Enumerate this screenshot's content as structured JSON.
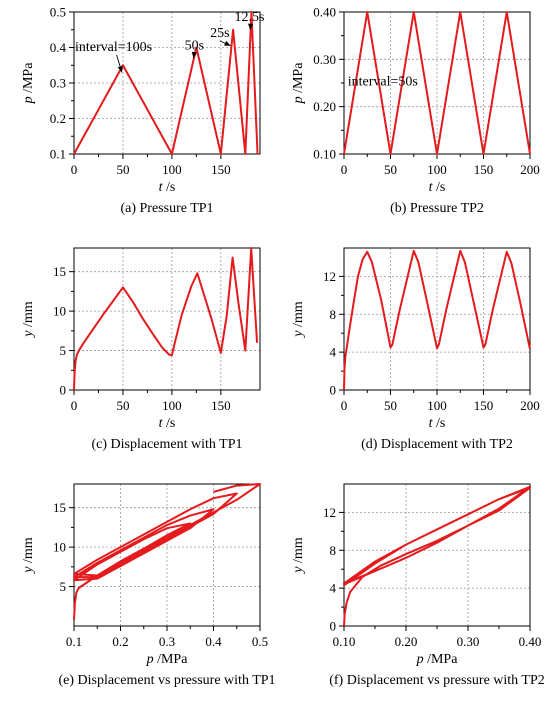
{
  "chart_data": [
    {
      "id": "a",
      "type": "line",
      "caption": "(a) Pressure TP1",
      "xlabel": "t",
      "xunit": " /s",
      "ylabel": "p",
      "yunit": " /MPa",
      "xlim": [
        0,
        190
      ],
      "ylim": [
        0.1,
        0.5
      ],
      "xticks": [
        0,
        50,
        100,
        150
      ],
      "yticks": [
        0.1,
        0.2,
        0.3,
        0.4,
        0.5
      ],
      "ytick_decimals": 1,
      "grid": true,
      "series": [
        {
          "x": [
            0,
            50,
            100,
            125,
            150,
            162.5,
            175,
            181.25,
            187.5
          ],
          "y": [
            0.1,
            0.35,
            0.1,
            0.4,
            0.1,
            0.45,
            0.1,
            0.5,
            0.1
          ]
        }
      ],
      "annotations": [
        {
          "text": "interval=100s",
          "x": 1,
          "y": 0.39,
          "ax": 49,
          "ay": 0.33
        },
        {
          "text": "50s",
          "x": 113,
          "y": 0.395,
          "ax": 122,
          "ay": 0.37
        },
        {
          "text": "25s",
          "x": 139,
          "y": 0.43,
          "ax": 160,
          "ay": 0.405
        },
        {
          "text": "12.5s",
          "x": 164,
          "y": 0.475,
          "ax": 180,
          "ay": 0.45
        }
      ]
    },
    {
      "id": "b",
      "type": "line",
      "caption": "(b) Pressure TP2",
      "xlabel": "t",
      "xunit": " /s",
      "ylabel": "p",
      "yunit": " /MPa",
      "xlim": [
        0,
        200
      ],
      "ylim": [
        0.1,
        0.4
      ],
      "xticks": [
        0,
        50,
        100,
        150,
        200
      ],
      "yticks": [
        0.1,
        0.2,
        0.3,
        0.4
      ],
      "ytick_decimals": 2,
      "grid": true,
      "series": [
        {
          "x": [
            0,
            25,
            50,
            75,
            100,
            125,
            150,
            175,
            200
          ],
          "y": [
            0.1,
            0.4,
            0.1,
            0.4,
            0.1,
            0.4,
            0.1,
            0.4,
            0.1
          ]
        }
      ],
      "annotations": [
        {
          "text": "interval=50s",
          "x": 4,
          "y": 0.245
        }
      ]
    },
    {
      "id": "c",
      "type": "line",
      "caption": "(c) Displacement with TP1",
      "xlabel": "t",
      "xunit": " /s",
      "ylabel": "y",
      "yunit": " /mm",
      "xlim": [
        0,
        190
      ],
      "ylim": [
        0,
        18
      ],
      "xticks": [
        0,
        50,
        100,
        150
      ],
      "yticks": [
        0,
        5,
        10,
        15
      ],
      "ytick_decimals": 0,
      "grid": true,
      "series": [
        {
          "x": [
            0,
            0.5,
            1.5,
            3,
            5,
            10,
            20,
            30,
            40,
            50,
            60,
            70,
            80,
            90,
            97,
            100,
            103,
            110,
            120,
            126,
            130,
            140,
            150,
            156,
            162,
            168,
            175,
            181,
            187
          ],
          "y": [
            0,
            2.0,
            3.6,
            4.5,
            5.0,
            6.0,
            7.8,
            9.6,
            11.3,
            13.0,
            11.2,
            9.1,
            7.2,
            5.4,
            4.5,
            4.4,
            6.0,
            9.5,
            13.2,
            14.8,
            13.2,
            9.2,
            4.7,
            9.4,
            16.8,
            11.0,
            5.0,
            18.0,
            6.0
          ]
        }
      ]
    },
    {
      "id": "d",
      "type": "line",
      "caption": "(d) Displacement with TP2",
      "xlabel": "t",
      "xunit": " /s",
      "ylabel": "y",
      "yunit": " /mm",
      "xlim": [
        0,
        200
      ],
      "ylim": [
        0,
        15
      ],
      "xticks": [
        0,
        50,
        100,
        150,
        200
      ],
      "yticks": [
        0,
        4,
        8,
        12
      ],
      "ytick_decimals": 0,
      "grid": true,
      "series": [
        {
          "x": [
            0,
            0.5,
            1.5,
            3,
            6,
            10,
            15,
            20,
            25,
            30,
            40,
            50,
            52,
            60,
            75,
            80,
            90,
            100,
            102,
            110,
            125,
            130,
            140,
            150,
            152,
            160,
            175,
            180,
            190,
            200
          ],
          "y": [
            0,
            2.2,
            3.6,
            4.5,
            6.5,
            9.0,
            12.0,
            13.8,
            14.6,
            13.5,
            9.5,
            4.5,
            4.8,
            8.5,
            14.7,
            13.5,
            9.0,
            4.4,
            4.8,
            8.5,
            14.7,
            13.5,
            9.0,
            4.5,
            4.8,
            8.5,
            14.6,
            13.4,
            9.0,
            4.3
          ]
        }
      ]
    },
    {
      "id": "e",
      "type": "line",
      "caption": "(e) Displacement vs pressure with TP1",
      "xlabel": "p",
      "xunit": " /MPa",
      "ylabel": "y",
      "yunit": " /mm",
      "xlim": [
        0.1,
        0.5
      ],
      "ylim": [
        0,
        18
      ],
      "xticks": [
        0.1,
        0.2,
        0.3,
        0.4,
        0.5
      ],
      "yticks": [
        5,
        10,
        15
      ],
      "xtick_decimals": 1,
      "ytick_decimals": 0,
      "grid": true,
      "series": [
        {
          "x": [
            0.1,
            0.102,
            0.105,
            0.11,
            0.15,
            0.2,
            0.25,
            0.3,
            0.35,
            0.3,
            0.25,
            0.2,
            0.15,
            0.1,
            0.15,
            0.2,
            0.25,
            0.3,
            0.35,
            0.4,
            0.35,
            0.3,
            0.25,
            0.2,
            0.15,
            0.1,
            0.15,
            0.2,
            0.25,
            0.3,
            0.35,
            0.4,
            0.45,
            0.4,
            0.35,
            0.3,
            0.25,
            0.2,
            0.15,
            0.1,
            0.15,
            0.2,
            0.25,
            0.3,
            0.35,
            0.4,
            0.45,
            0.5,
            0.45,
            0.4
          ],
          "y": [
            0.8,
            3.0,
            4.2,
            4.8,
            6.4,
            8.2,
            9.8,
            11.5,
            13.0,
            12.4,
            11.0,
            9.4,
            7.8,
            5.8,
            6.0,
            7.6,
            9.2,
            10.8,
            12.4,
            14.8,
            14.0,
            12.8,
            11.2,
            9.6,
            8.0,
            6.2,
            6.2,
            7.8,
            9.4,
            11.0,
            12.6,
            14.2,
            16.8,
            16.2,
            14.8,
            13.2,
            11.6,
            10.0,
            8.4,
            6.6,
            6.4,
            8.0,
            9.6,
            11.2,
            12.8,
            14.4,
            16.0,
            18.0,
            17.8,
            17.0
          ]
        }
      ]
    },
    {
      "id": "f",
      "type": "line",
      "caption": "(f) Displacement vs pressure with TP2",
      "xlabel": "p",
      "xunit": " /MPa",
      "ylabel": "y",
      "yunit": " /mm",
      "xlim": [
        0.1,
        0.4
      ],
      "ylim": [
        0,
        15
      ],
      "xticks": [
        0.1,
        0.2,
        0.3,
        0.4
      ],
      "yticks": [
        0,
        4,
        8,
        12
      ],
      "xtick_decimals": 2,
      "ytick_decimals": 0,
      "grid": true,
      "series": [
        {
          "x": [
            0.1,
            0.101,
            0.104,
            0.11,
            0.13,
            0.16,
            0.2,
            0.25,
            0.3,
            0.35,
            0.4,
            0.35,
            0.3,
            0.25,
            0.2,
            0.15,
            0.1,
            0.15,
            0.2,
            0.25,
            0.3,
            0.35,
            0.4,
            0.35,
            0.3,
            0.25,
            0.2,
            0.15,
            0.1,
            0.15,
            0.2,
            0.25,
            0.3,
            0.35,
            0.4,
            0.35,
            0.3,
            0.25,
            0.2,
            0.15,
            0.1,
            0.15,
            0.2,
            0.25,
            0.3,
            0.35,
            0.4,
            0.35,
            0.3,
            0.25,
            0.2,
            0.15,
            0.1
          ],
          "y": [
            0.0,
            1.2,
            2.4,
            3.6,
            5.2,
            6.4,
            7.6,
            9.0,
            10.6,
            12.2,
            14.6,
            13.4,
            11.8,
            10.2,
            8.6,
            6.8,
            4.5,
            5.8,
            7.2,
            8.8,
            10.6,
            12.4,
            14.7,
            13.4,
            11.8,
            10.2,
            8.6,
            6.8,
            4.4,
            5.8,
            7.2,
            8.8,
            10.6,
            12.4,
            14.7,
            13.4,
            11.8,
            10.2,
            8.6,
            6.8,
            4.5,
            5.8,
            7.2,
            8.8,
            10.6,
            12.4,
            14.6,
            13.4,
            11.8,
            10.2,
            8.6,
            6.6,
            4.3
          ]
        }
      ]
    }
  ]
}
